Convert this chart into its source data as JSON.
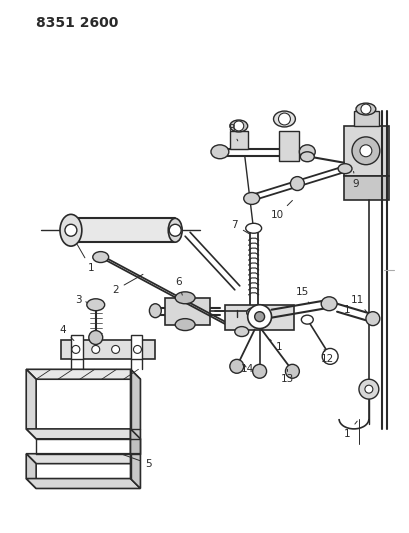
{
  "title": "8351 2600",
  "bg_color": "#ffffff",
  "line_color": "#2a2a2a",
  "title_fontsize": 10,
  "label_fontsize": 7.5,
  "figsize": [
    4.1,
    5.33
  ],
  "dpi": 100
}
